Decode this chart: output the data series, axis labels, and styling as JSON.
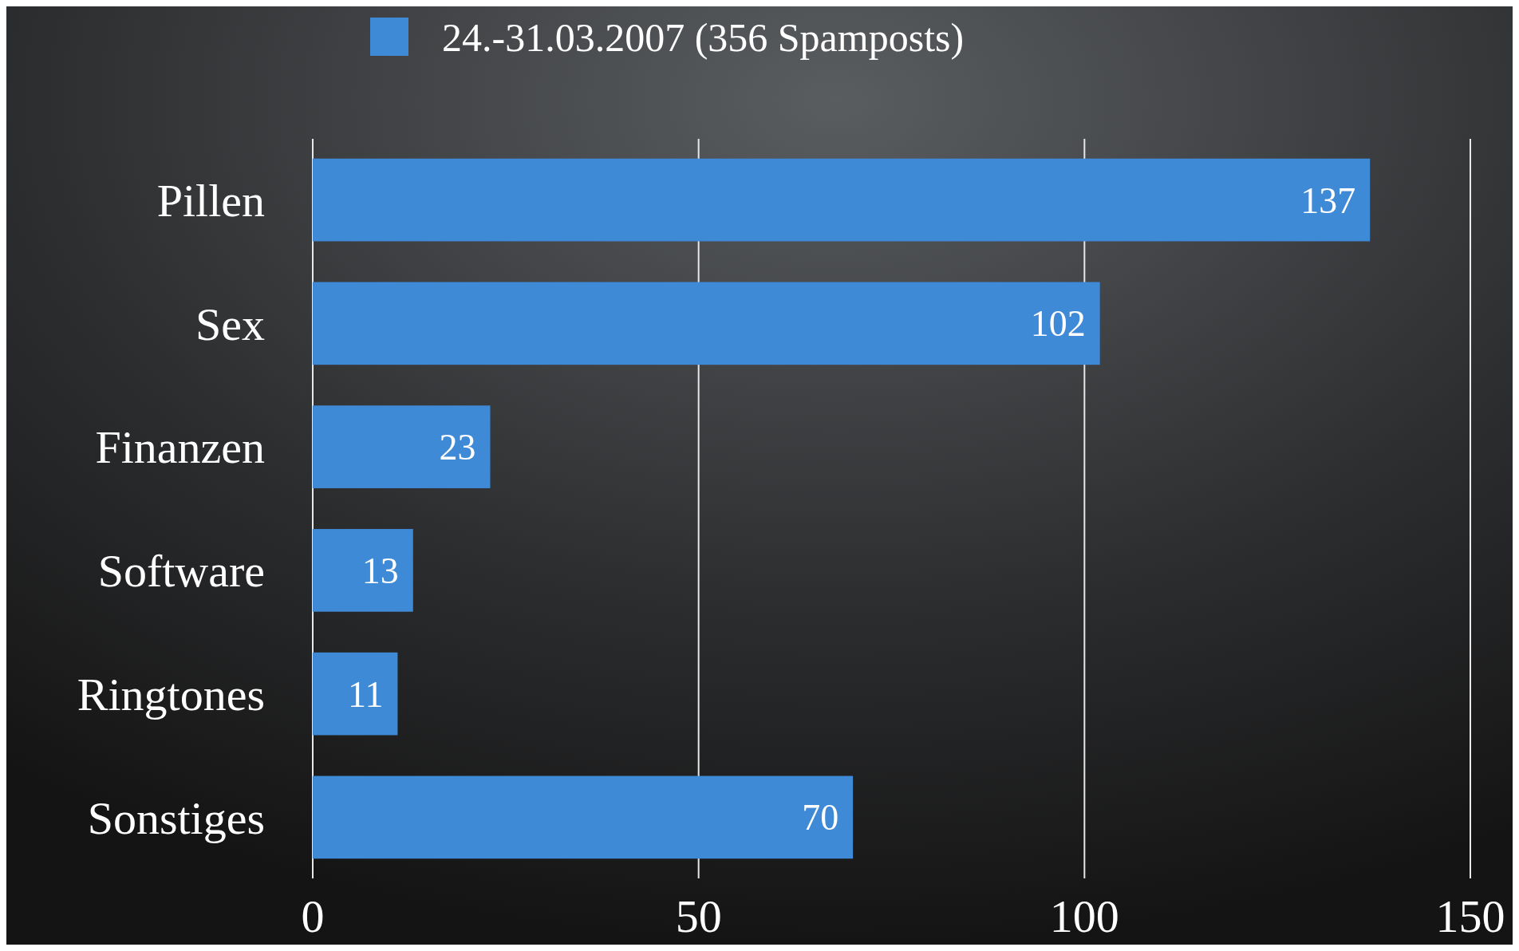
{
  "chart_data": {
    "type": "bar",
    "orientation": "horizontal",
    "categories": [
      "Pillen",
      "Sex",
      "Finanzen",
      "Software",
      "Ringtones",
      "Sonstiges"
    ],
    "series": [
      {
        "name": "24.-31.03.2007 (356 Spamposts)",
        "color": "#3f8ad6",
        "values": [
          137,
          102,
          23,
          13,
          11,
          70
        ]
      }
    ],
    "xlim": [
      0,
      150
    ],
    "xticks": [
      0,
      50,
      100,
      150
    ],
    "grid": "x",
    "legend": "top",
    "data_labels": true
  }
}
